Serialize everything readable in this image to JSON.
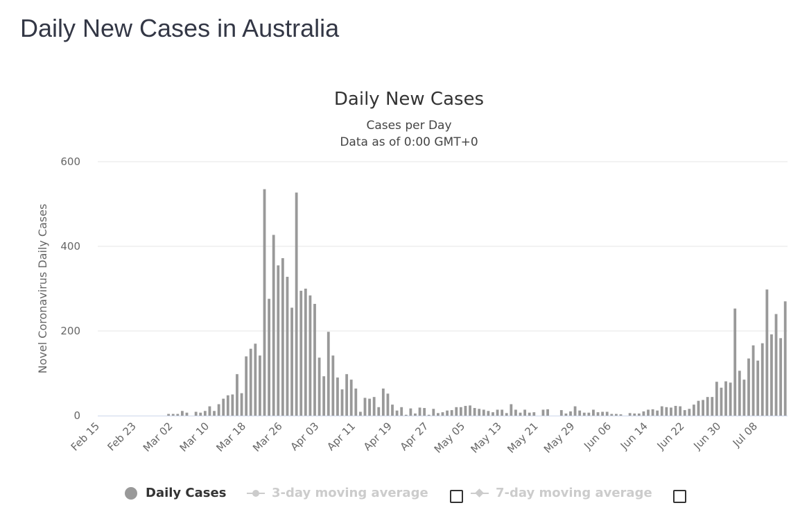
{
  "page": {
    "title": "Daily New Cases in Australia"
  },
  "chart_data": {
    "type": "bar",
    "title": "Daily New Cases",
    "subtitle_lines": [
      "Cases per Day",
      "Data as of 0:00 GMT+0"
    ],
    "ylabel": "Novel Coronavirus Daily Cases",
    "xlabel": "",
    "ylim": [
      0,
      600
    ],
    "y_ticks": [
      0,
      200,
      400,
      600
    ],
    "grid": true,
    "x_tick_labels": [
      "Feb 15",
      "Feb 23",
      "Mar 02",
      "Mar 10",
      "Mar 18",
      "Mar 26",
      "Apr 03",
      "Apr 11",
      "Apr 19",
      "Apr 27",
      "May 05",
      "May 13",
      "May 21",
      "May 29",
      "Jun 06",
      "Jun 14",
      "Jun 22",
      "Jun 30",
      "Jul 08"
    ],
    "tick_every": 8,
    "start_date": "Feb 15",
    "series": [
      {
        "name": "Daily Cases",
        "color": "#999999",
        "values": [
          0,
          0,
          0,
          0,
          0,
          0,
          0,
          0,
          0,
          0,
          0,
          0,
          0,
          0,
          0,
          4,
          4,
          4,
          11,
          7,
          0,
          9,
          7,
          11,
          22,
          11,
          27,
          40,
          48,
          50,
          98,
          53,
          140,
          158,
          170,
          142,
          535,
          276,
          427,
          355,
          372,
          328,
          255,
          527,
          295,
          300,
          284,
          264,
          137,
          93,
          198,
          142,
          90,
          62,
          98,
          85,
          64,
          9,
          42,
          40,
          44,
          20,
          64,
          52,
          26,
          12,
          20,
          2,
          17,
          5,
          19,
          18,
          2,
          16,
          6,
          8,
          12,
          13,
          20,
          20,
          23,
          24,
          18,
          16,
          14,
          11,
          8,
          14,
          14,
          6,
          27,
          14,
          7,
          14,
          7,
          8,
          0,
          14,
          15,
          0,
          0,
          13,
          5,
          10,
          22,
          12,
          7,
          7,
          14,
          8,
          9,
          9,
          4,
          4,
          3,
          0,
          6,
          5,
          5,
          10,
          14,
          15,
          12,
          22,
          20,
          19,
          23,
          22,
          13,
          16,
          26,
          35,
          37,
          44,
          44,
          80,
          66,
          81,
          78,
          253,
          106,
          85,
          135,
          166,
          130,
          171,
          298,
          192,
          240,
          183,
          270
        ]
      }
    ],
    "legend": [
      {
        "label": "Daily Cases",
        "enabled": true
      },
      {
        "label": "3-day moving average",
        "enabled": false
      },
      {
        "label": "7-day moving average",
        "enabled": false
      }
    ]
  }
}
